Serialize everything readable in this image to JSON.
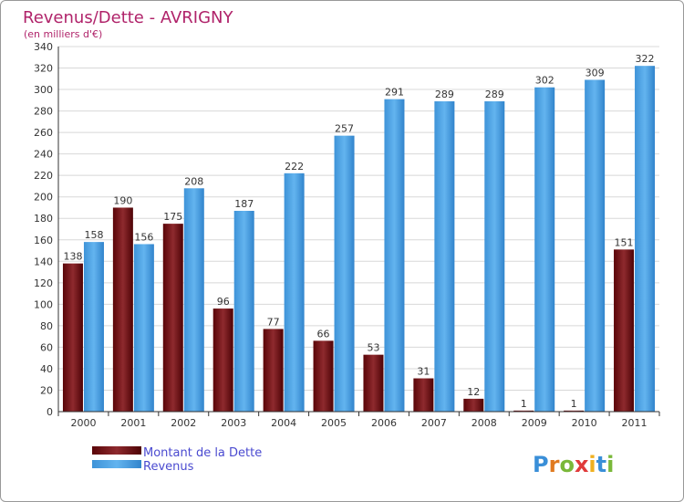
{
  "chart_data": {
    "type": "bar",
    "title": "Revenus/Dette - AVRIGNY",
    "subtitle": "(en milliers d'€)",
    "categories": [
      "2000",
      "2001",
      "2002",
      "2003",
      "2004",
      "2005",
      "2006",
      "2007",
      "2008",
      "2009",
      "2010",
      "2011"
    ],
    "series": [
      {
        "name": "Montant de la Dette",
        "color": "#7a1418",
        "values": [
          138,
          190,
          175,
          96,
          77,
          66,
          53,
          31,
          12,
          1,
          1,
          151
        ]
      },
      {
        "name": "Revenus",
        "color": "#4ca3e6",
        "values": [
          158,
          156,
          208,
          187,
          222,
          257,
          291,
          289,
          289,
          302,
          309,
          322
        ]
      }
    ],
    "y_ticks": [
      "0",
      "20",
      "40",
      "60",
      "80",
      "100",
      "120",
      "140",
      "160",
      "180",
      "200",
      "220",
      "240",
      "260",
      "280",
      "300",
      "320",
      "340"
    ],
    "ylim": [
      0,
      340
    ],
    "grid": true,
    "legend_position": "bottom-left",
    "colors": {
      "title": "#b0236a",
      "axis_text": "#333333",
      "grid": "#d8d8d8",
      "legend_text": "#4a4ad0"
    }
  },
  "logo": {
    "text": "Proxiti"
  }
}
